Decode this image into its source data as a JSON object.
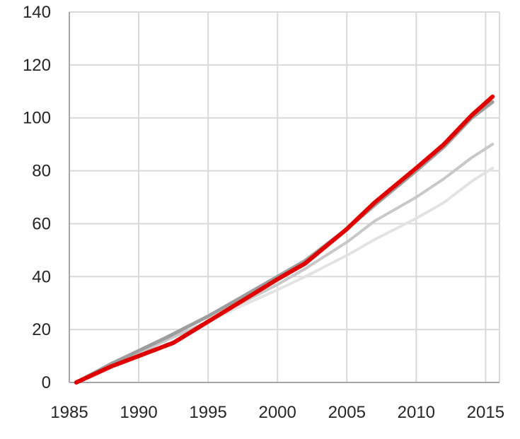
{
  "chart_data": {
    "type": "line",
    "title": "",
    "xlabel": "",
    "ylabel": "",
    "xlim": [
      1985,
      2016
    ],
    "ylim": [
      0,
      140
    ],
    "x_ticks": [
      1985,
      1990,
      1995,
      2000,
      2005,
      2010,
      2015
    ],
    "y_ticks": [
      0,
      20,
      40,
      60,
      80,
      100,
      120,
      140
    ],
    "grid": true,
    "legend": "none",
    "series": [
      {
        "color": "#e3e3e3",
        "width": 4,
        "points": [
          [
            1985.5,
            0
          ],
          [
            1988,
            6
          ],
          [
            1990,
            11
          ],
          [
            1992,
            16
          ],
          [
            1995,
            23
          ],
          [
            1997,
            28
          ],
          [
            2000,
            35
          ],
          [
            2002,
            40
          ],
          [
            2005,
            48
          ],
          [
            2007,
            54
          ],
          [
            2010,
            62
          ],
          [
            2012,
            68
          ],
          [
            2014,
            76
          ],
          [
            2015.5,
            81
          ]
        ]
      },
      {
        "color": "#c8c8c8",
        "width": 4,
        "points": [
          [
            1985.5,
            0
          ],
          [
            1988,
            6
          ],
          [
            1990,
            11
          ],
          [
            1992,
            16
          ],
          [
            1995,
            23
          ],
          [
            1997,
            29
          ],
          [
            2000,
            37
          ],
          [
            2002,
            43
          ],
          [
            2005,
            53
          ],
          [
            2007,
            61
          ],
          [
            2010,
            70
          ],
          [
            2012,
            77
          ],
          [
            2014,
            85
          ],
          [
            2015.5,
            90
          ]
        ]
      },
      {
        "color": "#9d9d9d",
        "width": 5,
        "points": [
          [
            1985.5,
            0
          ],
          [
            1988,
            7
          ],
          [
            1990,
            12
          ],
          [
            1992,
            17
          ],
          [
            1995,
            25
          ],
          [
            1997,
            31
          ],
          [
            2000,
            40
          ],
          [
            2002,
            46
          ],
          [
            2005,
            58
          ],
          [
            2007,
            67
          ],
          [
            2010,
            80
          ],
          [
            2012,
            89
          ],
          [
            2014,
            100
          ],
          [
            2015.5,
            106
          ]
        ]
      },
      {
        "color": "#e00000",
        "width": 6,
        "points": [
          [
            1985.5,
            0
          ],
          [
            1988,
            6
          ],
          [
            1990,
            10
          ],
          [
            1992.5,
            15
          ],
          [
            1995,
            23
          ],
          [
            1997.5,
            31
          ],
          [
            2000,
            39
          ],
          [
            2002,
            45
          ],
          [
            2005,
            58
          ],
          [
            2007,
            68
          ],
          [
            2010,
            81
          ],
          [
            2012,
            90
          ],
          [
            2014,
            101
          ],
          [
            2015.5,
            108
          ]
        ]
      }
    ]
  }
}
